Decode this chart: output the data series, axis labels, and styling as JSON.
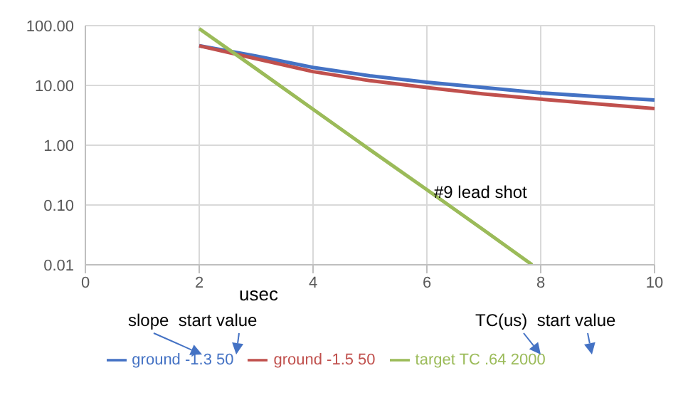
{
  "chart_data": {
    "type": "line",
    "xlabel": "usec",
    "annotations": [
      "#9 lead shot",
      "slope  start value",
      "TC(us)  start value"
    ],
    "series": [
      {
        "name": "ground -1.3 50",
        "color": "#4472c4",
        "x": [
          2,
          3,
          4,
          5,
          6,
          7,
          8,
          9,
          10
        ],
        "values": [
          46,
          31,
          20,
          14.5,
          11.3,
          9.2,
          7.5,
          6.5,
          5.7
        ]
      },
      {
        "name": "ground -1.5 50",
        "color": "#c0504d",
        "x": [
          2,
          3,
          4,
          5,
          6,
          7,
          8,
          9,
          10
        ],
        "values": [
          46,
          28,
          17,
          12,
          9.2,
          7.2,
          5.9,
          4.9,
          4.1
        ]
      },
      {
        "name": "target TC .64 2000",
        "color": "#9bbb59",
        "x": [
          2,
          3,
          4,
          5,
          6,
          7,
          7.85
        ],
        "values": [
          89,
          19,
          4.0,
          0.84,
          0.18,
          0.038,
          0.01
        ]
      }
    ],
    "xlim": [
      0,
      10
    ],
    "xticks": [
      0,
      2,
      4,
      6,
      8,
      10
    ],
    "ylim": [
      0.01,
      100
    ],
    "yticks": [
      {
        "value": 0.01,
        "label": "0.01"
      },
      {
        "value": 0.1,
        "label": "0.10"
      },
      {
        "value": 1,
        "label": "1.00"
      },
      {
        "value": 10,
        "label": "10.00"
      },
      {
        "value": 100,
        "label": "100.00"
      }
    ],
    "log": "y",
    "grid": true,
    "legend": "bottom",
    "marker": "none",
    "line_style": "solid"
  }
}
